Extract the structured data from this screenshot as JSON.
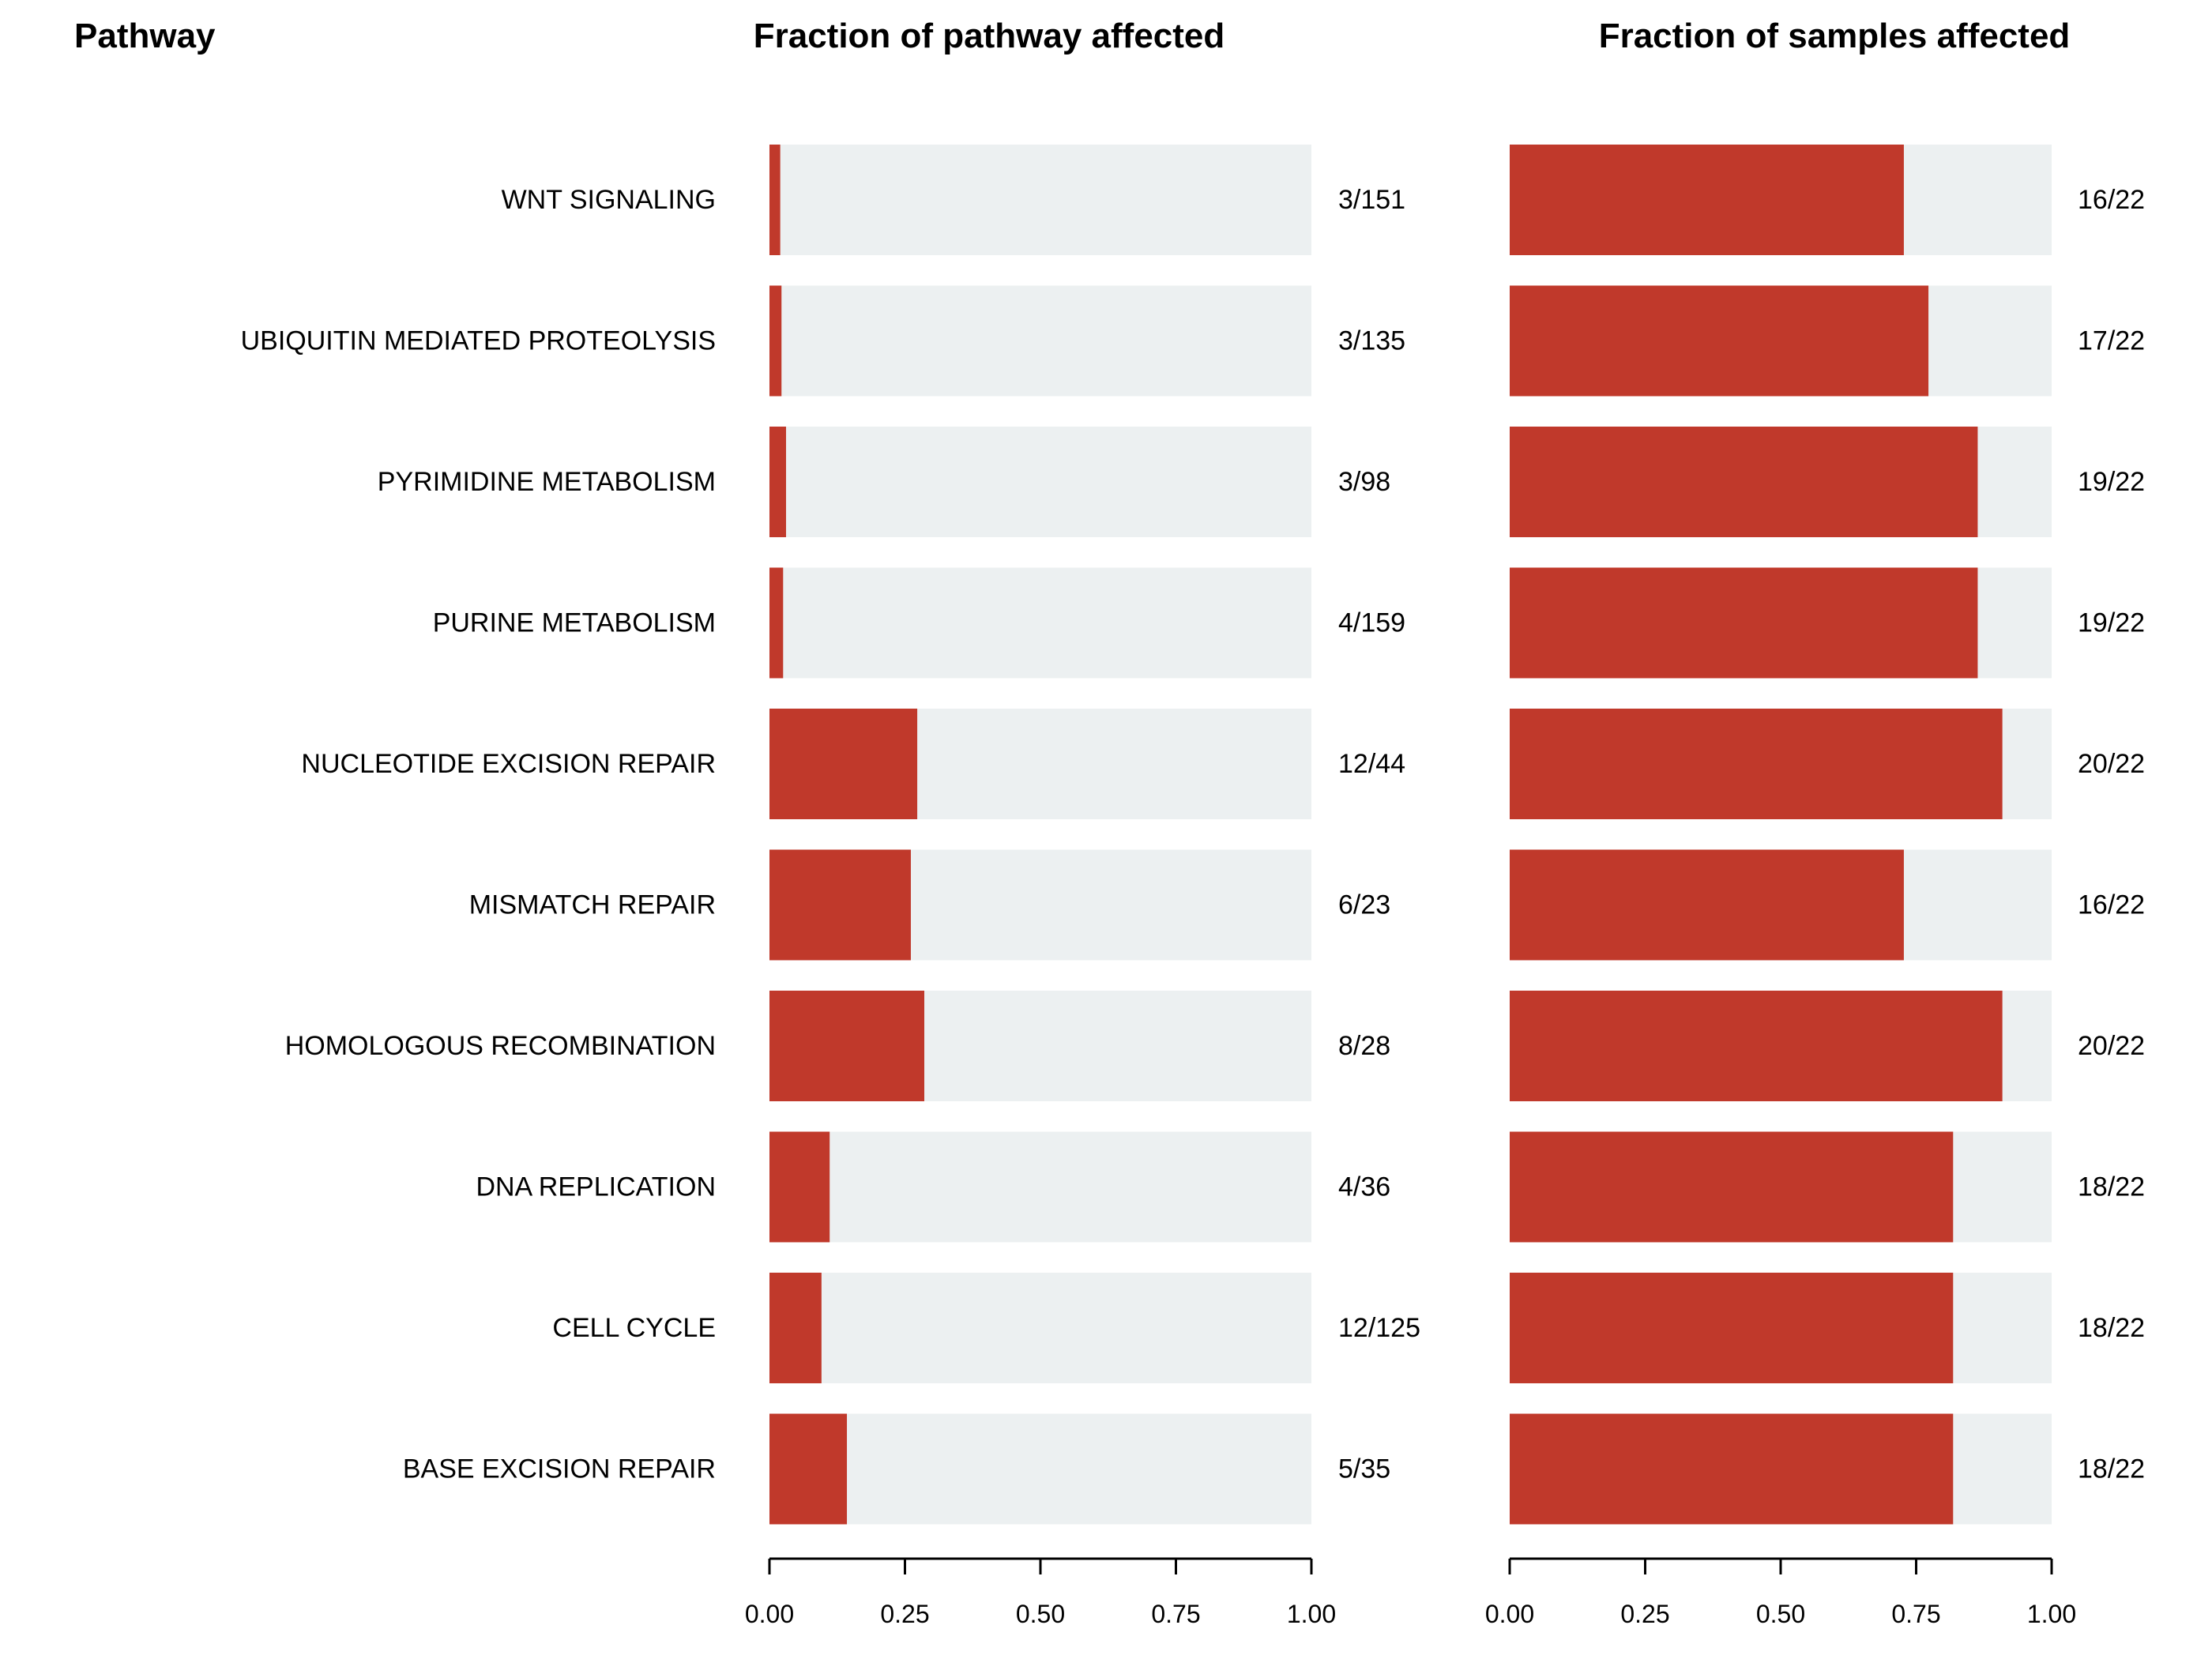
{
  "chart_data": {
    "type": "bar",
    "orientation": "horizontal",
    "stacked_background": true,
    "headers": {
      "pathway": "Pathway",
      "panel_left": "Fraction of pathway affected",
      "panel_right": "Fraction of samples affected"
    },
    "categories": [
      "WNT SIGNALING",
      "UBIQUITIN MEDIATED PROTEOLYSIS",
      "PYRIMIDINE METABOLISM",
      "PURINE METABOLISM",
      "NUCLEOTIDE EXCISION REPAIR",
      "MISMATCH REPAIR",
      "HOMOLOGOUS RECOMBINATION",
      "DNA REPLICATION",
      "CELL CYCLE",
      "BASE EXCISION REPAIR"
    ],
    "series": [
      {
        "values": [
          0.0199,
          0.0222,
          0.0306,
          0.0252,
          0.2727,
          0.2609,
          0.2857,
          0.1111,
          0.096,
          0.1429
        ],
        "labels": [
          "3/151",
          "3/135",
          "3/98",
          "4/159",
          "12/44",
          "6/23",
          "8/28",
          "4/36",
          "12/125",
          "5/35"
        ]
      },
      {
        "values": [
          0.7273,
          0.7727,
          0.8636,
          0.8636,
          0.9091,
          0.7273,
          0.9091,
          0.8182,
          0.8182,
          0.8182
        ],
        "labels": [
          "16/22",
          "17/22",
          "19/22",
          "19/22",
          "20/22",
          "16/22",
          "20/22",
          "18/22",
          "18/22",
          "18/22"
        ]
      }
    ],
    "xlim": [
      0,
      1
    ],
    "xticks": [
      "0.00",
      "0.25",
      "0.50",
      "0.75",
      "1.00"
    ],
    "colors": {
      "filled": "#c0392b",
      "background": "#ecf0f1",
      "axis": "#000000"
    },
    "grid": false,
    "legend": "none"
  }
}
